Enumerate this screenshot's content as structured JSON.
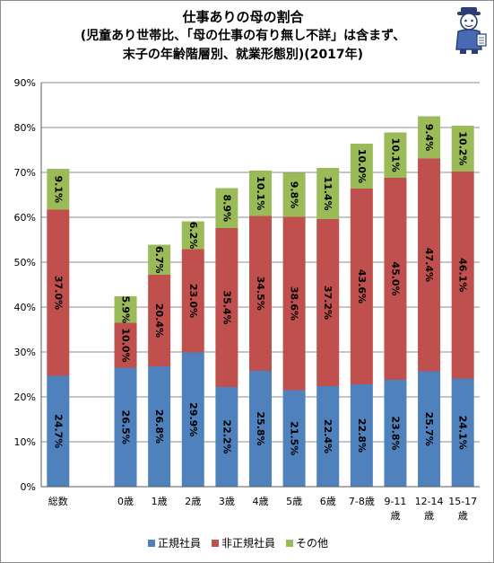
{
  "title_lines": [
    "仕事ありの母の割合",
    "(児童あり世帯比、「母の仕事の有り無し不詳」は含まず、",
    "末子の年齢階層別、就業形態別)(2017年)"
  ],
  "chart_data": {
    "type": "bar",
    "stacked": true,
    "categories": [
      "総数",
      "",
      "0歳",
      "1歳",
      "2歳",
      "3歳",
      "4歳",
      "5歳",
      "6歳",
      "7-8歳",
      "9-11歳",
      "12-14歳",
      "15-17歳"
    ],
    "category_label_lines": [
      [
        "総数"
      ],
      [
        ""
      ],
      [
        "0歳"
      ],
      [
        "1歳"
      ],
      [
        "2歳"
      ],
      [
        "3歳"
      ],
      [
        "4歳"
      ],
      [
        "5歳"
      ],
      [
        "6歳"
      ],
      [
        "7-8歳"
      ],
      [
        "9-11",
        "歳"
      ],
      [
        "12-14",
        "歳"
      ],
      [
        "15-17",
        "歳"
      ]
    ],
    "series": [
      {
        "name": "正規社員",
        "color": "#4f81bd",
        "values": [
          24.7,
          null,
          26.5,
          26.8,
          29.9,
          22.2,
          25.8,
          21.5,
          22.4,
          22.8,
          23.8,
          25.7,
          24.1
        ]
      },
      {
        "name": "非正規社員",
        "color": "#c0504d",
        "values": [
          37.0,
          null,
          10.0,
          20.4,
          23.0,
          35.4,
          34.5,
          38.6,
          37.2,
          43.6,
          45.0,
          47.4,
          46.1
        ]
      },
      {
        "name": "その他",
        "color": "#9bbb59",
        "values": [
          9.1,
          null,
          5.9,
          6.7,
          6.2,
          8.9,
          10.1,
          9.8,
          11.4,
          10.0,
          10.1,
          9.4,
          10.2
        ]
      }
    ],
    "ylim": [
      0,
      90
    ],
    "yticks": [
      0,
      10,
      20,
      30,
      40,
      50,
      60,
      70,
      80,
      90
    ],
    "ytick_suffix": "%",
    "value_suffix": "%",
    "grid": true,
    "legend_position": "bottom"
  }
}
